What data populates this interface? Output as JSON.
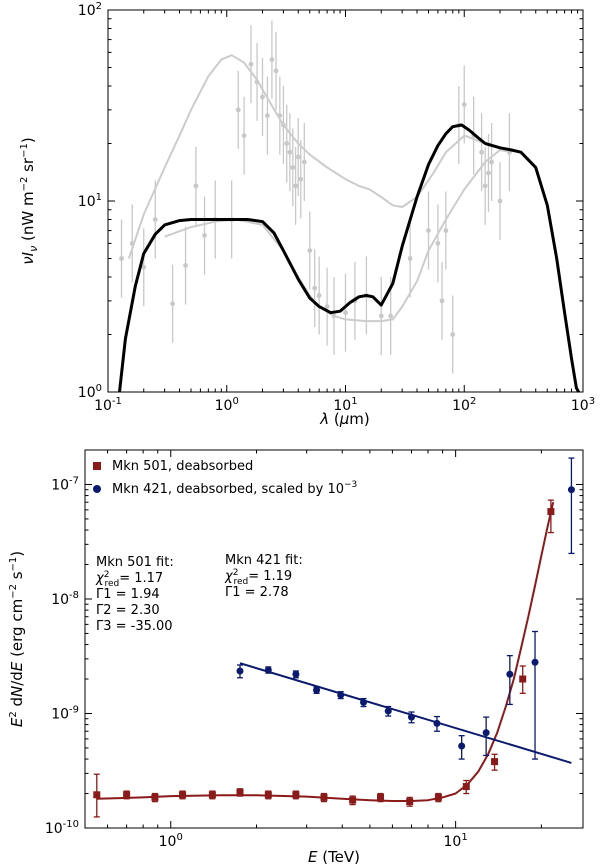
{
  "chart_data": [
    {
      "type": "line",
      "xlabel": "λ (μm)",
      "ylabel": "νIν (nW m⁻² sr⁻¹)",
      "xscale": "log",
      "yscale": "log",
      "xlim": [
        0.1,
        1000
      ],
      "ylim": [
        1,
        100
      ],
      "xticks": [
        {
          "v": 0.1,
          "b": "10",
          "e": "-1"
        },
        {
          "v": 1,
          "b": "10",
          "e": "0"
        },
        {
          "v": 10,
          "b": "10",
          "e": "1"
        },
        {
          "v": 100,
          "b": "10",
          "e": "2"
        },
        {
          "v": 1000,
          "b": "10",
          "e": "3"
        }
      ],
      "yticks": [
        {
          "v": 1,
          "b": "10",
          "e": "0"
        },
        {
          "v": 10,
          "b": "10",
          "e": "1"
        },
        {
          "v": 100,
          "b": "10",
          "e": "2"
        }
      ],
      "series": [
        {
          "name": "EBL model (black)",
          "color": "#000000",
          "x": [
            0.125,
            0.14,
            0.17,
            0.2,
            0.25,
            0.3,
            0.4,
            0.5,
            0.7,
            1.0,
            1.5,
            2.0,
            2.5,
            3.0,
            4.0,
            5.0,
            6.0,
            7.5,
            9.0,
            11,
            13,
            15,
            17,
            20,
            25,
            30,
            40,
            50,
            60,
            70,
            80,
            95,
            110,
            130,
            150,
            200,
            250,
            300,
            400,
            500,
            600,
            700,
            800,
            880,
            920
          ],
          "y": [
            1.0,
            1.9,
            3.6,
            5.3,
            6.7,
            7.5,
            7.9,
            8.0,
            8.0,
            8.0,
            8.0,
            7.8,
            6.8,
            5.5,
            3.9,
            3.1,
            2.8,
            2.6,
            2.65,
            2.95,
            3.15,
            3.2,
            3.15,
            2.85,
            3.7,
            5.8,
            10.5,
            15.5,
            19.5,
            22.5,
            24.5,
            25.0,
            23.5,
            21.5,
            20.0,
            19.0,
            18.5,
            18.0,
            15.0,
            9.5,
            5.0,
            2.6,
            1.5,
            1.05,
            1.0
          ]
        },
        {
          "name": "EBL model (gray)",
          "color": "#cccccc",
          "x": [
            0.15,
            0.2,
            0.3,
            0.4,
            0.5,
            0.7,
            0.9,
            1.1,
            1.4,
            1.8,
            2.3,
            3.0,
            4.0,
            5.0,
            7.0,
            10,
            13,
            16,
            20,
            25,
            30,
            40,
            55,
            70,
            100,
            150,
            200,
            250
          ],
          "y": [
            5.0,
            8.5,
            15.0,
            22.0,
            30.0,
            45.0,
            55.0,
            58.0,
            53.0,
            43.0,
            33.0,
            25.0,
            20.0,
            17.5,
            15.0,
            13.0,
            12.0,
            11.5,
            10.5,
            9.5,
            9.3,
            10.5,
            14.0,
            18.0,
            22.0,
            20.0,
            19.0,
            18.5
          ]
        },
        {
          "name": "EBL model (gray, lower)",
          "color": "#cccccc",
          "x": [
            0.3,
            0.5,
            0.8,
            1.2,
            2.0,
            3.0,
            4.0,
            5.0,
            6.0,
            8.0,
            10,
            15,
            20,
            25,
            30,
            40,
            50,
            70,
            100,
            150,
            200,
            250
          ],
          "y": [
            6.5,
            7.3,
            7.8,
            8.0,
            7.5,
            5.5,
            4.0,
            3.2,
            2.8,
            2.5,
            2.4,
            2.35,
            2.35,
            2.4,
            2.8,
            3.8,
            5.5,
            8.0,
            11.5,
            16.0,
            18.5,
            18.0
          ]
        }
      ],
      "points": [
        {
          "x": 0.13,
          "y": 5.0
        },
        {
          "x": 0.16,
          "y": 6.0
        },
        {
          "x": 0.2,
          "y": 4.5
        },
        {
          "x": 0.25,
          "y": 8.0
        },
        {
          "x": 0.35,
          "y": 2.9
        },
        {
          "x": 0.45,
          "y": 4.6
        },
        {
          "x": 0.55,
          "y": 12.0
        },
        {
          "x": 0.65,
          "y": 6.6
        },
        {
          "x": 0.8,
          "y": 8.0
        },
        {
          "x": 1.1,
          "y": 8.0
        },
        {
          "x": 1.25,
          "y": 30.0
        },
        {
          "x": 1.4,
          "y": 22.0
        },
        {
          "x": 1.6,
          "y": 52.0
        },
        {
          "x": 1.8,
          "y": 42.0
        },
        {
          "x": 2.0,
          "y": 35.0
        },
        {
          "x": 2.2,
          "y": 28.0
        },
        {
          "x": 2.4,
          "y": 55.0
        },
        {
          "x": 2.6,
          "y": 48.0
        },
        {
          "x": 2.8,
          "y": 28.0
        },
        {
          "x": 3.0,
          "y": 25.0
        },
        {
          "x": 3.2,
          "y": 20.0
        },
        {
          "x": 3.4,
          "y": 18.0
        },
        {
          "x": 3.6,
          "y": 15.0
        },
        {
          "x": 3.8,
          "y": 12.0
        },
        {
          "x": 4.0,
          "y": 17.0
        },
        {
          "x": 4.2,
          "y": 13.0
        },
        {
          "x": 4.5,
          "y": 16.0
        },
        {
          "x": 5.0,
          "y": 5.5
        },
        {
          "x": 5.5,
          "y": 3.5
        },
        {
          "x": 6.0,
          "y": 3.2
        },
        {
          "x": 7.0,
          "y": 2.8
        },
        {
          "x": 8.0,
          "y": 2.5
        },
        {
          "x": 10.0,
          "y": 2.6
        },
        {
          "x": 12.0,
          "y": 3.0
        },
        {
          "x": 15.0,
          "y": 3.2
        },
        {
          "x": 20.0,
          "y": 2.5
        },
        {
          "x": 24.0,
          "y": 2.5
        },
        {
          "x": 35.0,
          "y": 5.0
        },
        {
          "x": 50.0,
          "y": 7.0
        },
        {
          "x": 60.0,
          "y": 6.0
        },
        {
          "x": 65.0,
          "y": 3.0
        },
        {
          "x": 70.0,
          "y": 7.0
        },
        {
          "x": 80.0,
          "y": 2.0
        },
        {
          "x": 90.0,
          "y": 25.0
        },
        {
          "x": 100.0,
          "y": 32.0
        },
        {
          "x": 120.0,
          "y": 22.0
        },
        {
          "x": 140.0,
          "y": 18.0
        },
        {
          "x": 150.0,
          "y": 12.0
        },
        {
          "x": 160.0,
          "y": 14.0
        },
        {
          "x": 170.0,
          "y": 16.0
        },
        {
          "x": 200.0,
          "y": 10.0
        },
        {
          "x": 240.0,
          "y": 18.0
        }
      ]
    },
    {
      "type": "scatter",
      "xlabel": "E (TeV)",
      "ylabel": "E² dN/dE (erg cm⁻² s⁻¹)",
      "xscale": "log",
      "yscale": "log",
      "xlim": [
        0.5,
        28
      ],
      "ylim": [
        1e-10,
        2e-07
      ],
      "xticks": [
        {
          "v": 1,
          "b": "10",
          "e": "0"
        },
        {
          "v": 10,
          "b": "10",
          "e": "1"
        }
      ],
      "yticks": [
        {
          "v": 1e-10,
          "b": "10",
          "e": "-10"
        },
        {
          "v": 1e-09,
          "b": "10",
          "e": "-9"
        },
        {
          "v": 1e-08,
          "b": "10",
          "e": "-8"
        },
        {
          "v": 1e-07,
          "b": "10",
          "e": "-7"
        }
      ],
      "legend": {
        "position": "top-left",
        "entries": [
          {
            "label": "Mkn 501, deabsorbed",
            "marker": "square",
            "color": "#8b1a1a"
          },
          {
            "label": "Mkn 421, deabsorbed, scaled by 10",
            "exp": "−3",
            "marker": "circle",
            "color": "#0b1a6e"
          }
        ]
      },
      "series": [
        {
          "name": "Mkn 501, deabsorbed",
          "marker": "square",
          "color": "#8b1a1a",
          "x": [
            0.55,
            0.7,
            0.88,
            1.1,
            1.4,
            1.75,
            2.2,
            2.75,
            3.45,
            4.35,
            5.45,
            6.9,
            8.7,
            10.9,
            13.7,
            17.2,
            21.6
          ],
          "y": [
            1.95e-10,
            1.95e-10,
            1.85e-10,
            1.95e-10,
            1.95e-10,
            2.05e-10,
            1.95e-10,
            1.95e-10,
            1.85e-10,
            1.75e-10,
            1.85e-10,
            1.7e-10,
            1.85e-10,
            2.3e-10,
            3.8e-10,
            2e-09,
            5.8e-08
          ],
          "err_lo": [
            7e-11,
            1.5e-11,
            1.5e-11,
            1.5e-11,
            1.5e-11,
            1.5e-11,
            1.5e-11,
            1.5e-11,
            1.5e-11,
            1.5e-11,
            1.5e-11,
            1.5e-11,
            1.5e-11,
            3e-11,
            6e-11,
            5e-10,
            2e-08
          ],
          "err_hi": [
            1e-10,
            1.5e-11,
            1.5e-11,
            1.5e-11,
            1.5e-11,
            1.5e-11,
            1.5e-11,
            1.5e-11,
            1.5e-11,
            1.5e-11,
            1.5e-11,
            1.5e-11,
            1.5e-11,
            3e-11,
            6e-11,
            6e-10,
            1.5e-08
          ]
        },
        {
          "name": "Mkn 421, deabsorbed, scaled by 1e-3",
          "marker": "circle",
          "color": "#0b1a6e",
          "x": [
            1.75,
            2.2,
            2.75,
            3.25,
            3.95,
            4.75,
            5.8,
            7.0,
            8.6,
            10.5,
            12.8,
            15.5,
            19.0,
            25.5
          ],
          "y": [
            2.35e-09,
            2.4e-09,
            2.2e-09,
            1.6e-09,
            1.45e-09,
            1.25e-09,
            1.05e-09,
            9.3e-10,
            8.2e-10,
            5.2e-10,
            6.8e-10,
            2.2e-09,
            2.8e-09,
            9e-08
          ],
          "err_lo": [
            3e-10,
            1.5e-10,
            1.5e-10,
            1e-10,
            1e-10,
            1e-10,
            1e-10,
            1e-10,
            1.2e-10,
            1.2e-10,
            2.5e-10,
            1e-09,
            2.4e-09,
            6.5e-08
          ],
          "err_hi": [
            3e-10,
            1.5e-10,
            1.5e-10,
            1e-10,
            1e-10,
            1e-10,
            1e-10,
            1e-10,
            1.2e-10,
            1.2e-10,
            2.5e-10,
            1e-09,
            2.4e-09,
            8e-08
          ]
        }
      ],
      "fits": [
        {
          "name": "Mkn 501 fit curve",
          "color": "#8b1a1a",
          "x": [
            0.55,
            0.8,
            1.0,
            1.5,
            2.0,
            3.0,
            4.0,
            5.0,
            6.0,
            7.0,
            8.0,
            9.0,
            10.0,
            11.0,
            12.0,
            13.0,
            14.0,
            15.0,
            16.0,
            17.0,
            18.0,
            19.0,
            20.0,
            21.0,
            22.0
          ],
          "y": [
            1.8e-10,
            1.85e-10,
            1.9e-10,
            1.93e-10,
            1.93e-10,
            1.88e-10,
            1.8e-10,
            1.75e-10,
            1.72e-10,
            1.72e-10,
            1.75e-10,
            1.85e-10,
            2e-10,
            2.4e-10,
            3.1e-10,
            4.4e-10,
            6.8e-10,
            1.15e-09,
            2e-09,
            3.8e-09,
            7e-09,
            1.3e-08,
            2.4e-08,
            4.2e-08,
            7e-08
          ]
        },
        {
          "name": "Mkn 421 fit line",
          "color": "#0b1a6e",
          "x": [
            1.75,
            25.5
          ],
          "y": [
            2.75e-09,
            3.7e-10
          ]
        }
      ],
      "annotations": [
        {
          "id": "mkn501",
          "title": "Mkn 501 fit:",
          "chi2_label": "χ²red",
          "chi2": "= 1.17",
          "params": [
            "Γ1 = 1.94",
            "Γ2 = 2.30",
            "Γ3 = -35.00"
          ]
        },
        {
          "id": "mkn421",
          "title": "Mkn 421 fit:",
          "chi2_label": "χ²red",
          "chi2": "= 1.19",
          "params": [
            "Γ1 = 2.78"
          ]
        }
      ]
    }
  ]
}
